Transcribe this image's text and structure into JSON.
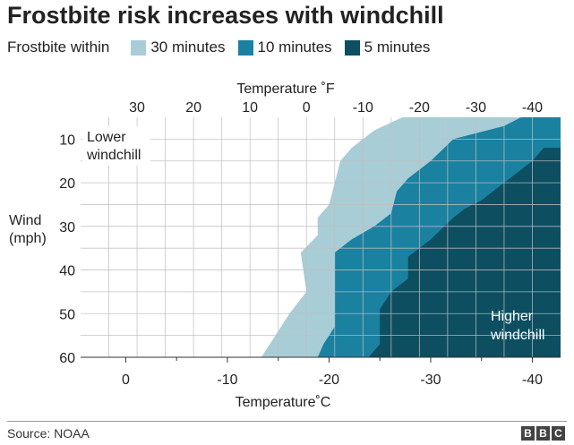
{
  "title": "Frostbite risk increases with windchill",
  "legend": {
    "lead": "Frostbite within",
    "items": [
      {
        "label": "30 minutes",
        "color": "#a8cdd6"
      },
      {
        "label": "10 minutes",
        "color": "#1a81a0"
      },
      {
        "label": "5 minutes",
        "color": "#0d4e61"
      }
    ]
  },
  "source": "Source: NOAA",
  "logo": [
    "B",
    "B",
    "C"
  ],
  "chart_data": {
    "type": "area",
    "title": "Frostbite risk increases with windchill",
    "x_top": {
      "label": "Temperature ˚F",
      "range": [
        40,
        -45
      ],
      "ticks": [
        30,
        20,
        10,
        0,
        -10,
        -20,
        -30,
        -40
      ]
    },
    "x_bottom": {
      "label": "Temperature˚C",
      "ticks": [
        0,
        -10,
        -20,
        -30,
        -40
      ]
    },
    "y": {
      "label": "Wind\n(mph)",
      "range": [
        5,
        60
      ],
      "ticks": [
        10,
        20,
        30,
        40,
        50,
        60
      ]
    },
    "grid": true,
    "series": [
      {
        "name": "30 minutes",
        "color": "#a8cdd6",
        "boundary": [
          [
            -45,
            5
          ],
          [
            -17,
            5
          ],
          [
            -12,
            8
          ],
          [
            -8,
            12
          ],
          [
            -6,
            15
          ],
          [
            -5,
            20
          ],
          [
            -4,
            25
          ],
          [
            -2,
            28
          ],
          [
            -2,
            32
          ],
          [
            1,
            36
          ],
          [
            0,
            45
          ],
          [
            3,
            50
          ],
          [
            5,
            54
          ],
          [
            7,
            58
          ],
          [
            8,
            60
          ]
        ]
      },
      {
        "name": "10 minutes",
        "color": "#1a81a0",
        "boundary": [
          [
            -45,
            5
          ],
          [
            -38,
            5
          ],
          [
            -35,
            7
          ],
          [
            -26,
            10
          ],
          [
            -22,
            15
          ],
          [
            -18,
            19
          ],
          [
            -16,
            22
          ],
          [
            -15,
            27
          ],
          [
            -12,
            30
          ],
          [
            -8,
            33
          ],
          [
            -5,
            36
          ],
          [
            -5,
            45
          ],
          [
            -5,
            53
          ],
          [
            -3,
            57
          ],
          [
            -2,
            60
          ]
        ]
      },
      {
        "name": "5 minutes",
        "color": "#0d4e61",
        "boundary": [
          [
            -45,
            12
          ],
          [
            -42,
            12
          ],
          [
            -40,
            15
          ],
          [
            -35,
            20
          ],
          [
            -31,
            24
          ],
          [
            -28,
            26
          ],
          [
            -26,
            28
          ],
          [
            -22,
            33
          ],
          [
            -18,
            37
          ],
          [
            -18,
            42
          ],
          [
            -15,
            45
          ],
          [
            -13,
            49
          ],
          [
            -13,
            55
          ],
          [
            -13,
            57
          ],
          [
            -11,
            60
          ]
        ]
      }
    ],
    "annotations": [
      {
        "text": "Lower\nwindchill",
        "x": 32,
        "y": 9.5
      },
      {
        "text": "Higher\nwindchill",
        "x": -35,
        "y": 52
      }
    ]
  }
}
